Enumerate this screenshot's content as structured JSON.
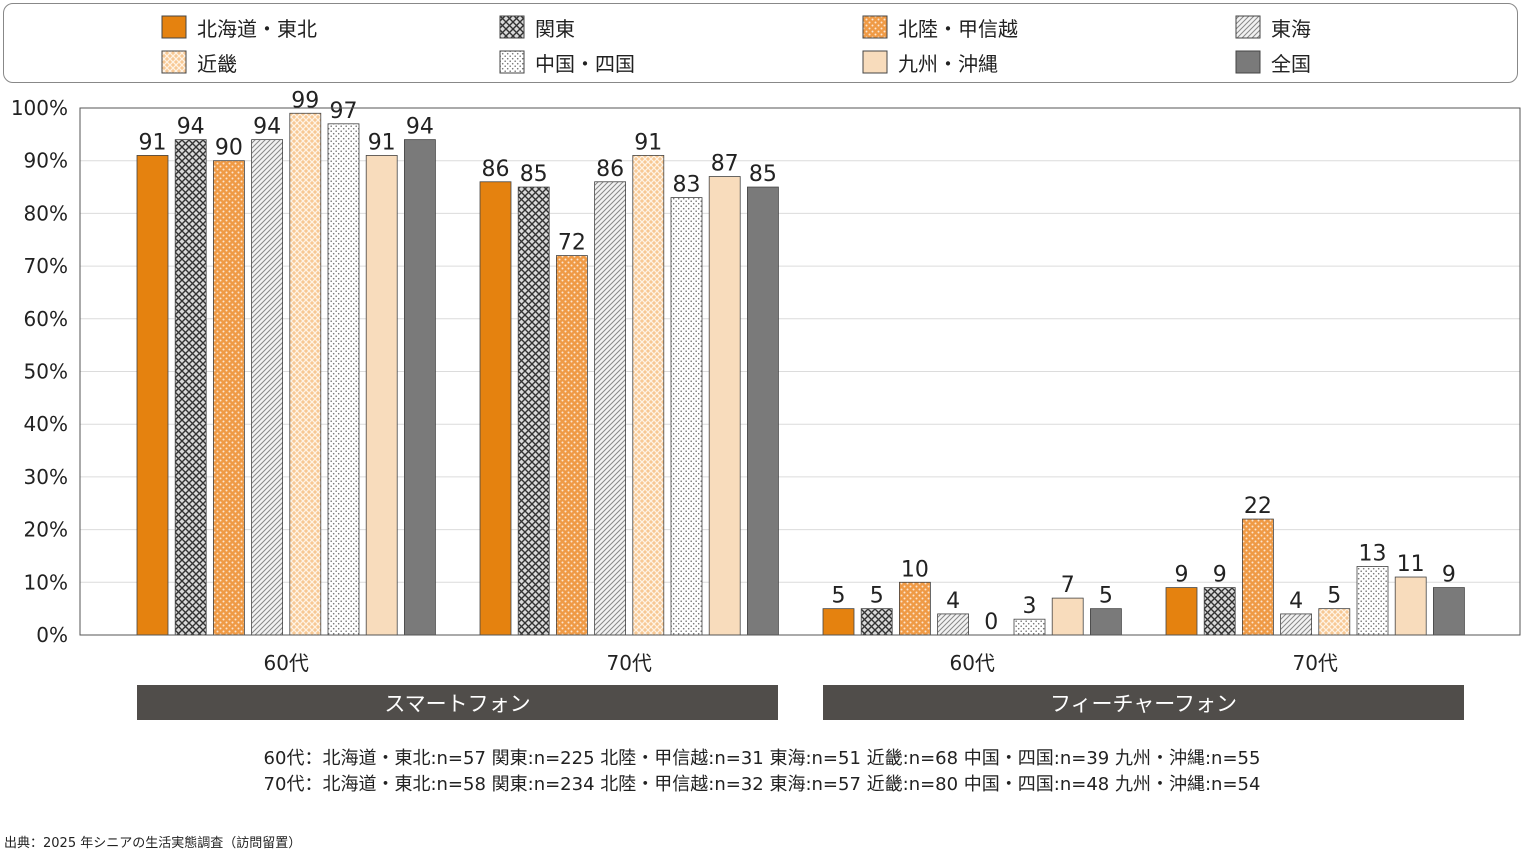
{
  "legend": [
    {
      "label": "北海道・東北",
      "key": "hokkaido"
    },
    {
      "label": "関東",
      "key": "kanto"
    },
    {
      "label": "北陸・甲信越",
      "key": "hokuriku"
    },
    {
      "label": "東海",
      "key": "tokai"
    },
    {
      "label": "近畿",
      "key": "kinki"
    },
    {
      "label": "中国・四国",
      "key": "chugoku"
    },
    {
      "label": "九州・沖縄",
      "key": "kyushu"
    },
    {
      "label": "全国",
      "key": "zenkoku"
    }
  ],
  "chart_data": {
    "type": "bar",
    "ylim": [
      0,
      100
    ],
    "yticks": [
      "0%",
      "10%",
      "20%",
      "30%",
      "40%",
      "50%",
      "60%",
      "70%",
      "80%",
      "90%",
      "100%"
    ],
    "grid": true,
    "categories": [
      "60代",
      "70代",
      "60代",
      "70代"
    ],
    "groups": [
      {
        "label": "スマートフォン",
        "categories": [
          0,
          1
        ]
      },
      {
        "label": "フィーチャーフォン",
        "categories": [
          2,
          3
        ]
      }
    ],
    "series": [
      {
        "name": "北海道・東北",
        "values": [
          91,
          86,
          5,
          9
        ]
      },
      {
        "name": "関東",
        "values": [
          94,
          85,
          5,
          9
        ]
      },
      {
        "name": "北陸・甲信越",
        "values": [
          90,
          72,
          10,
          22
        ]
      },
      {
        "name": "東海",
        "values": [
          94,
          86,
          4,
          4
        ]
      },
      {
        "name": "近畿",
        "values": [
          99,
          91,
          0,
          5
        ]
      },
      {
        "name": "中国・四国",
        "values": [
          97,
          83,
          3,
          13
        ]
      },
      {
        "name": "九州・沖縄",
        "values": [
          91,
          87,
          7,
          11
        ]
      },
      {
        "name": "全国",
        "values": [
          94,
          85,
          5,
          9
        ]
      }
    ],
    "display_values": [
      [
        "91",
        "86",
        "5",
        "9"
      ],
      [
        "94",
        "85",
        "5",
        "9"
      ],
      [
        "90",
        "72",
        "10",
        "22"
      ],
      [
        "94",
        "86",
        "4",
        "4"
      ],
      [
        "99",
        "91",
        "0",
        "5"
      ],
      [
        "97",
        "83",
        "3",
        "13"
      ],
      [
        "91",
        "87",
        "7",
        "11"
      ],
      [
        "94",
        "85",
        "5",
        "9"
      ]
    ]
  },
  "colors": {
    "hokkaido": "#e5820f",
    "hokuriku": "#f0a050",
    "kinki": "#f8c88e",
    "kyushu": "#f8dcbc",
    "zenkoku": "#7a7a7a",
    "hatch": "#555555"
  },
  "notes": {
    "line60": "60代：北海道・東北:n=57 関東:n=225 北陸・甲信越:n=31 東海:n=51 近畿:n=68 中国・四国:n=39 九州・沖縄:n=55",
    "line70": "70代：北海道・東北:n=58 関東:n=234 北陸・甲信越:n=32 東海:n=57 近畿:n=80 中国・四国:n=48 九州・沖縄:n=54"
  },
  "source": "出典：2025 年シニアの生活実態調査（訪問留置）"
}
